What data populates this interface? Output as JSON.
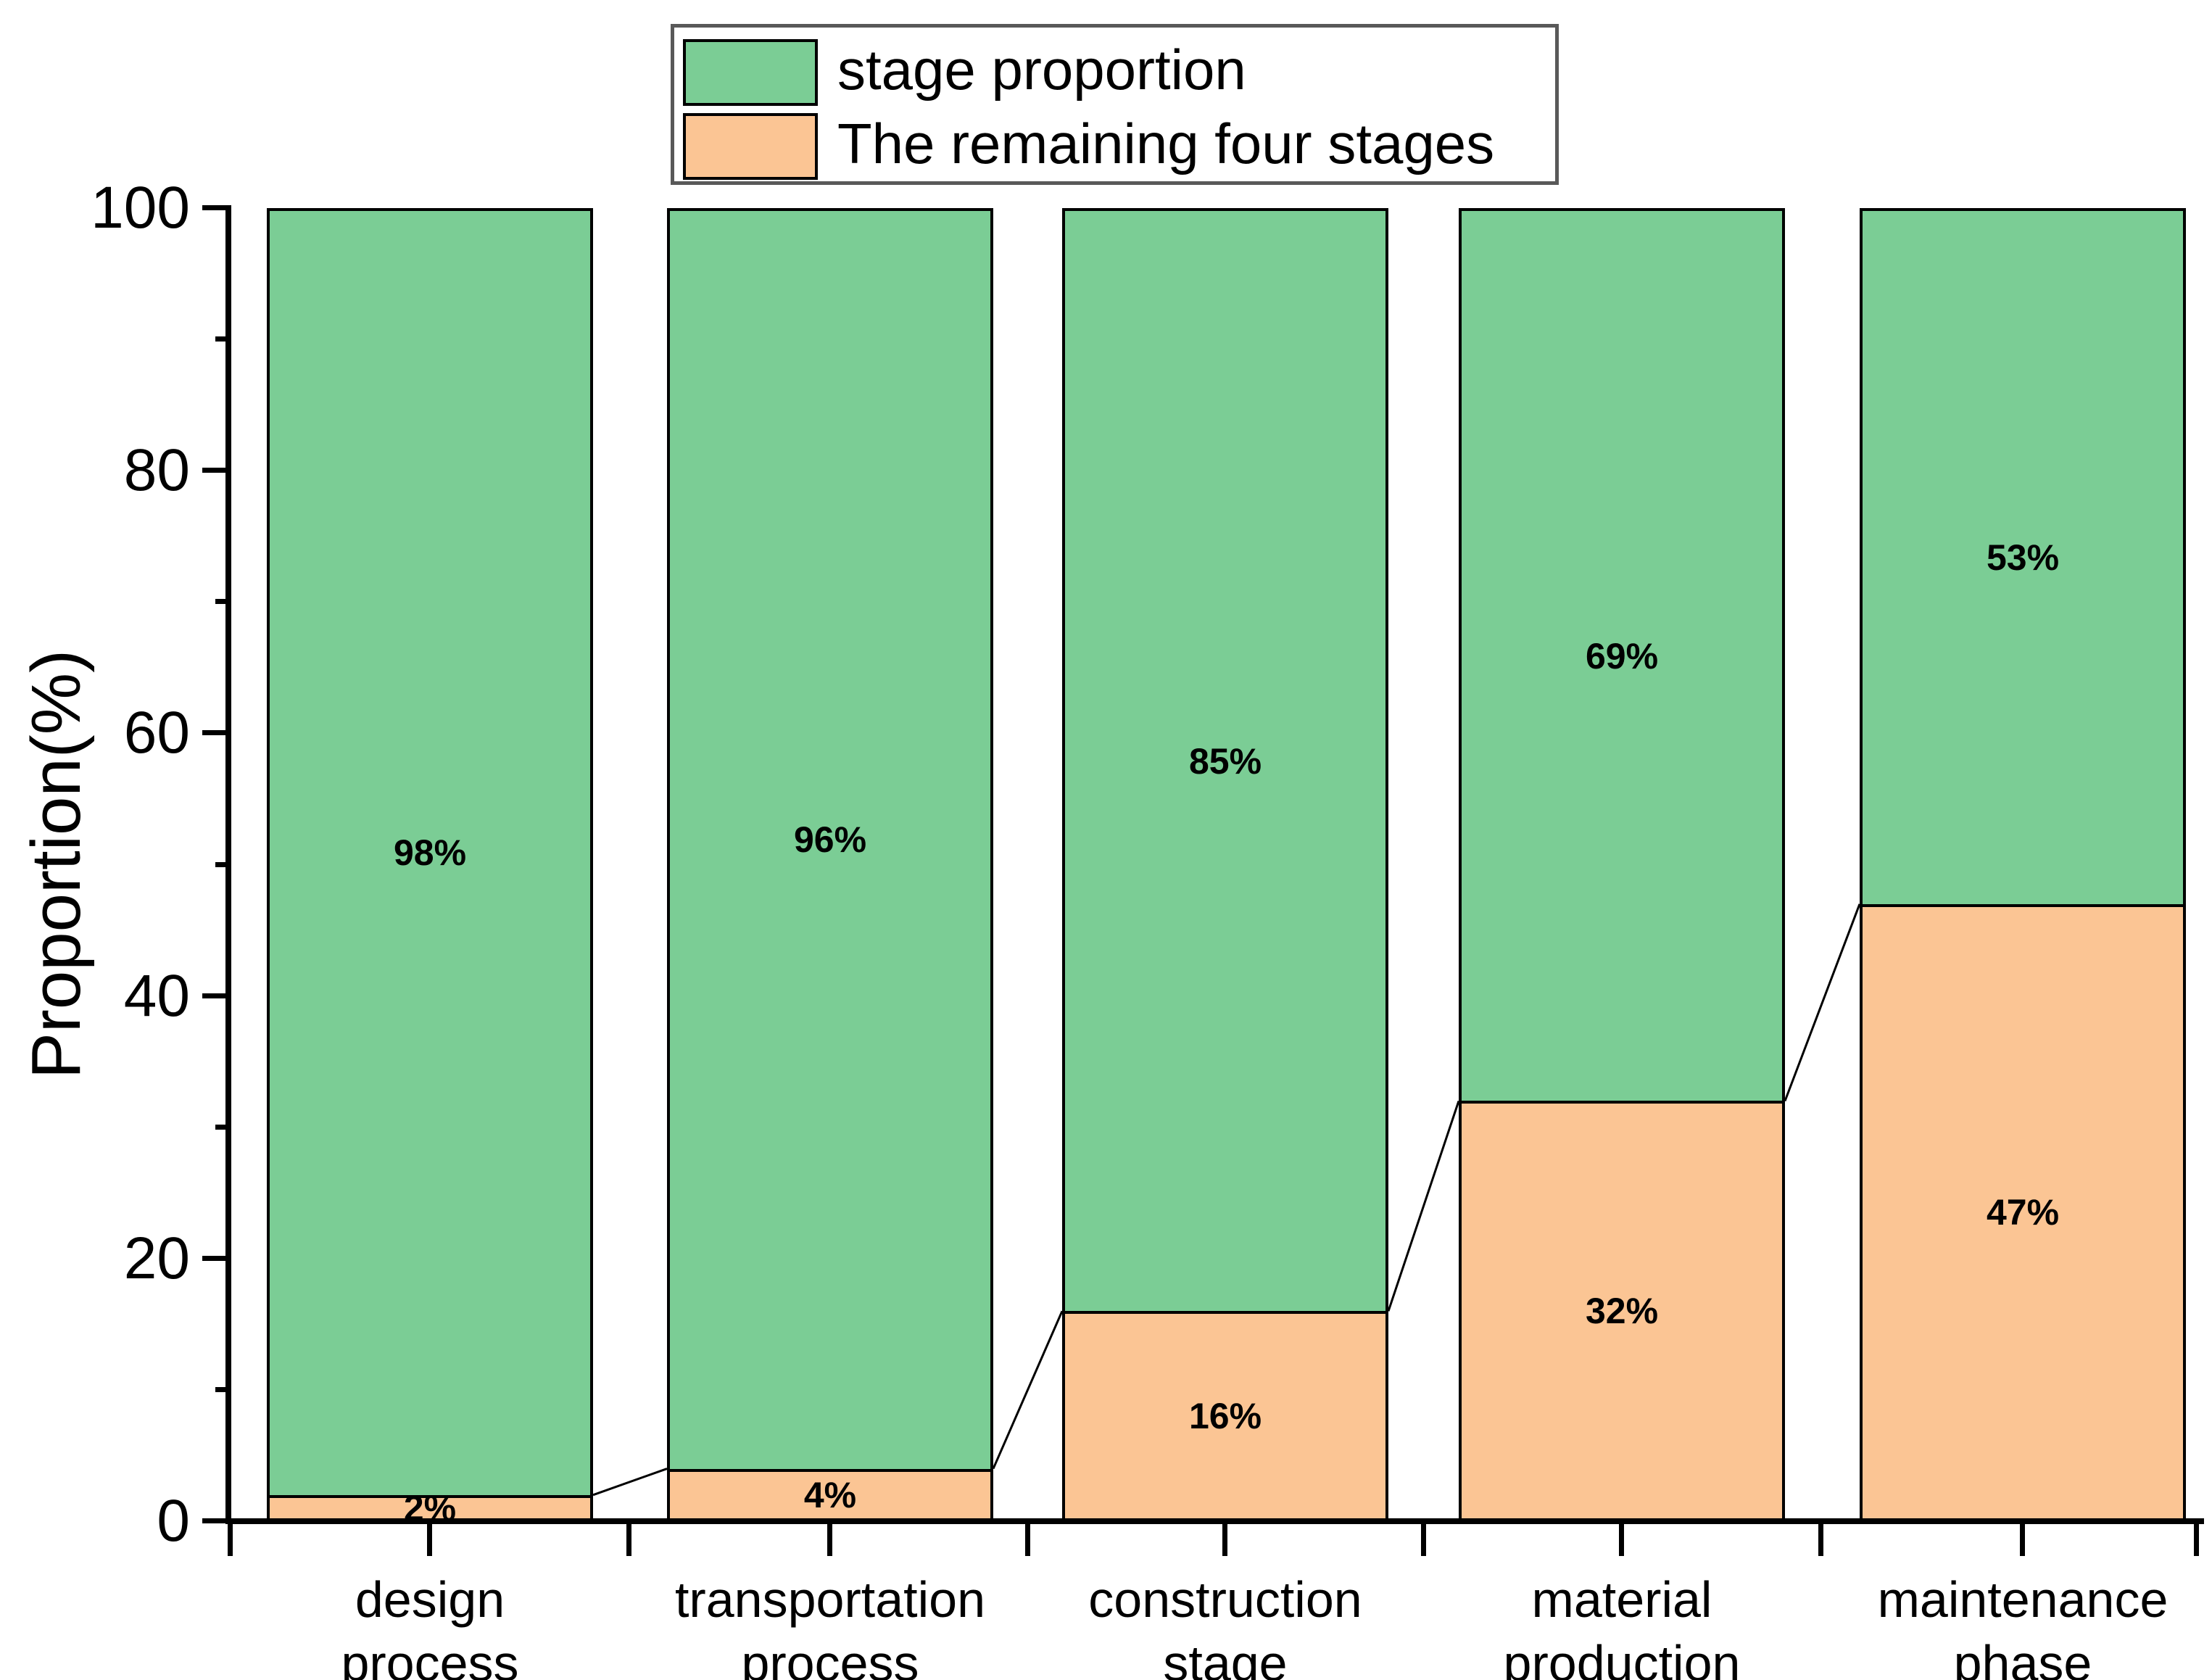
{
  "chart_data": {
    "type": "bar",
    "stacked": true,
    "categories": [
      "design\nprocess",
      "transportation\nprocess",
      "construction\nstage",
      "material\nproduction",
      "maintenance\nphase"
    ],
    "series": [
      {
        "name": "stage proportion",
        "color": "#7BCD95",
        "values": [
          98,
          96,
          85,
          69,
          53
        ],
        "labels": [
          "98%",
          "96%",
          "85%",
          "69%",
          "53%"
        ]
      },
      {
        "name": "The remaining four stages",
        "color": "#FBC594",
        "values": [
          2,
          4,
          16,
          32,
          47
        ],
        "labels": [
          "2%",
          "4%",
          "16%",
          "32%",
          "47%"
        ]
      }
    ],
    "ylabel": "Proportion(%)",
    "ylim": [
      0,
      100
    ],
    "yticks": [
      0,
      20,
      40,
      60,
      80,
      100
    ],
    "minor_yticks": [
      10,
      30,
      50,
      70,
      90
    ],
    "grid": false,
    "legend_position": "top-center",
    "bar_outline_color": "#000000",
    "connector_lines": true
  },
  "axes": {
    "y": {
      "title": "Proportion(%)",
      "tick_labels": [
        "0",
        "20",
        "40",
        "60",
        "80",
        "100"
      ]
    }
  },
  "legend": {
    "items": [
      {
        "label": "stage proportion",
        "color": "#7BCD95"
      },
      {
        "label": "The remaining four stages",
        "color": "#FBC594"
      }
    ]
  }
}
